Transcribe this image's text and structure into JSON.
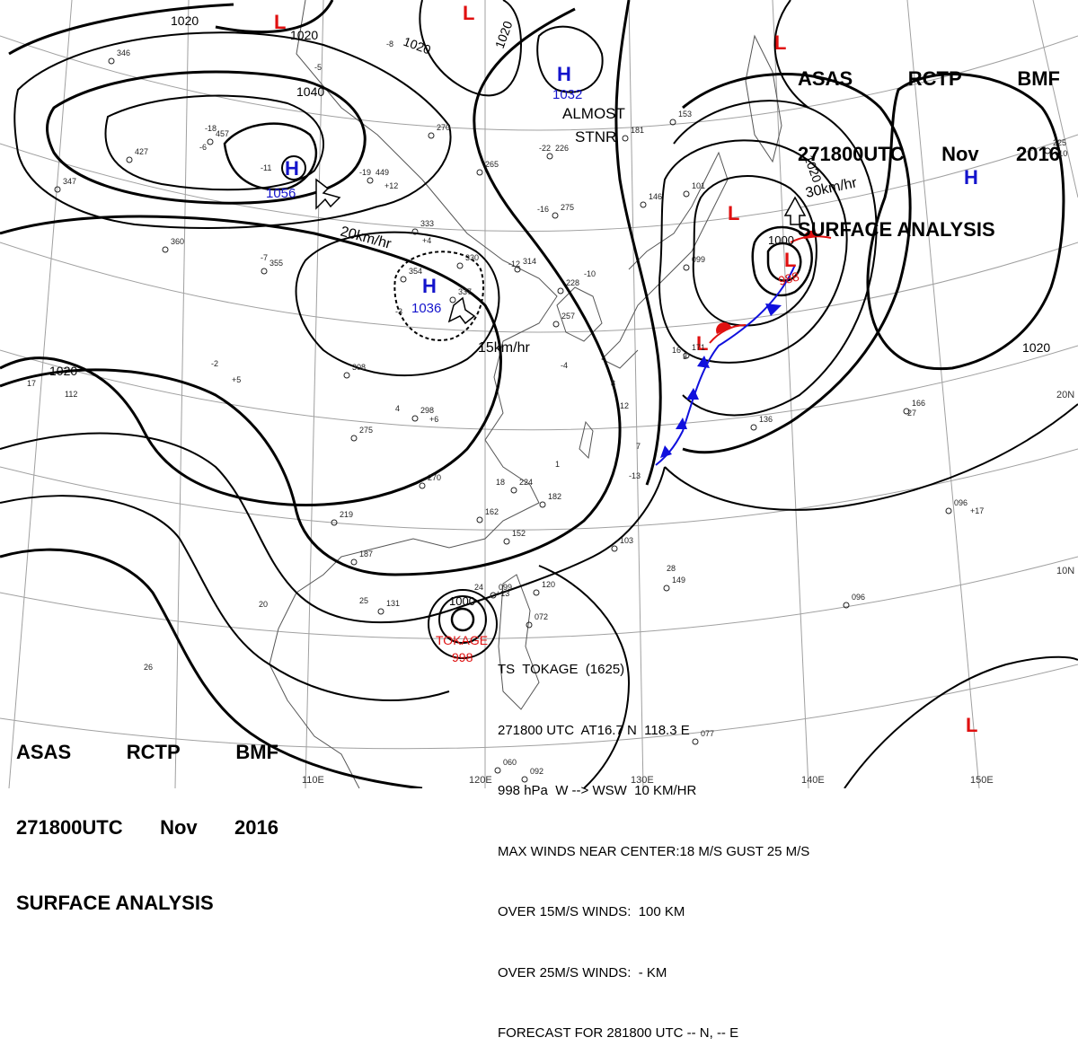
{
  "header": {
    "line1": [
      "ASAS",
      "RCTP",
      "BMF"
    ],
    "line2": [
      "271800UTC",
      "Nov",
      "2016"
    ],
    "line3": "SURFACE ANALYSIS"
  },
  "pressure_centers": [
    {
      "type": "H",
      "value": "1056"
    },
    {
      "type": "H",
      "value": "1036"
    },
    {
      "type": "H",
      "value": "1032"
    },
    {
      "type": "H",
      "value": ""
    },
    {
      "type": "L",
      "value": ""
    },
    {
      "type": "L",
      "value": ""
    },
    {
      "type": "L",
      "value": ""
    },
    {
      "type": "L",
      "value": ""
    },
    {
      "type": "L",
      "value": "988"
    },
    {
      "type": "L",
      "value": ""
    },
    {
      "type": "L",
      "value": ""
    }
  ],
  "isobar_labels": [
    "1020",
    "1020",
    "1020",
    "1020",
    "1040",
    "1020",
    "1020",
    "1020",
    "1000",
    "1000"
  ],
  "motion_labels": [
    "20km/hr",
    "15km/hr",
    "30km/hr",
    "ALMOST",
    "STNR"
  ],
  "storm": {
    "name_label": "TOKAGE",
    "pressure": "998",
    "lines": [
      "TS  TOKAGE  (1625)",
      "271800 UTC  AT16.7 N  118.3 E",
      "998 hPa  W --> WSW  10 KM/HR",
      "MAX WINDS NEAR CENTER:18 M/S GUST 25 M/S",
      "OVER 15M/S WINDS:  100 KM",
      "OVER 25M/S WINDS:  - KM",
      "FORECAST FOR 281800 UTC -- N, -- E"
    ]
  },
  "grid_labels": [
    "110E",
    "120E",
    "130E",
    "140E",
    "150E",
    "20N",
    "10N"
  ],
  "station_plots": [
    "346",
    "427",
    "347",
    "360",
    "355",
    "457",
    "449",
    "333",
    "354",
    "337",
    "330",
    "314",
    "270",
    "265",
    "226",
    "181",
    "275",
    "228",
    "257",
    "308",
    "298",
    "275",
    "219",
    "187",
    "270",
    "224",
    "182",
    "162",
    "152",
    "131",
    "103",
    "149",
    "120",
    "072",
    "099",
    "096",
    "166",
    "136",
    "096",
    "225",
    "077",
    "060",
    "092",
    "101",
    "099",
    "171",
    "153",
    "146",
    "-18",
    "-11",
    "-19",
    "-5",
    "-7",
    "-3",
    "-12",
    "-16",
    "-22",
    "-2",
    "+12",
    "+5",
    "+4",
    "+6",
    "-13",
    "-10",
    "-4",
    "-8",
    "-6",
    "17",
    "112",
    "26",
    "20",
    "25",
    "28",
    "27",
    "18",
    "24",
    "16",
    "8",
    "12",
    "3",
    "7",
    "1",
    "4",
    "+10",
    "+13",
    "+17"
  ],
  "colors": {
    "high": "#1414cc",
    "low": "#e01010",
    "isobar": "#000000",
    "cold_front": "#1010dd",
    "warm_front": "#e01010",
    "grid": "#999999"
  }
}
